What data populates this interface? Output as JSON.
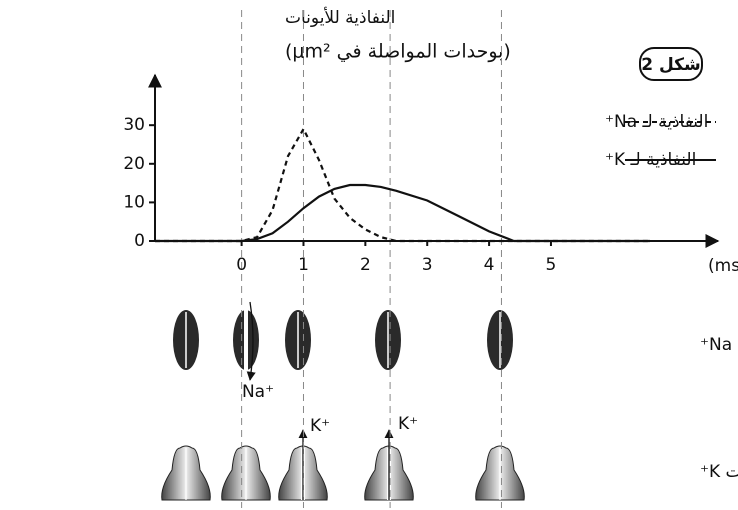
{
  "chart_data": {
    "type": "line",
    "title": "النفاذية للأيونات",
    "subtitle": "(بوحدات المواصلة في μm²)",
    "figure_label": "شكل 2",
    "x_label": "الزمن بـ (ms)",
    "x": [
      -1.4,
      0,
      0.25,
      0.5,
      0.75,
      1,
      1.25,
      1.5,
      1.75,
      2,
      2.25,
      2.5,
      3,
      3.5,
      4,
      4.4,
      6.6
    ],
    "series": [
      {
        "name": "النفاذية لـ Na⁺",
        "color": "#111111",
        "dash": true,
        "values": [
          0,
          0,
          1,
          8,
          22,
          29,
          21,
          11,
          6,
          3,
          1,
          0,
          0,
          0,
          0,
          0,
          0
        ]
      },
      {
        "name": "النفاذية لـ K⁺",
        "color": "#111111",
        "dash": false,
        "values": [
          0,
          0,
          0.5,
          2,
          5,
          8.5,
          11.5,
          13.5,
          14.5,
          14.5,
          14,
          13,
          10.5,
          6.5,
          2.5,
          0,
          0
        ]
      }
    ],
    "xlim": [
      -1.4,
      7.7
    ],
    "ylim": [
      0,
      43
    ],
    "xticks": [
      0,
      1,
      2,
      3,
      4,
      5
    ],
    "yticks": [
      0,
      10,
      20,
      30
    ],
    "reference_lines": [
      0,
      1,
      2.4,
      4.2
    ],
    "legend": "upper-right",
    "channel_rows": [
      "قنوات Na⁺",
      "قنوات K⁺"
    ],
    "ion_labels": [
      "Na⁺",
      "K⁺",
      "K⁺"
    ]
  }
}
